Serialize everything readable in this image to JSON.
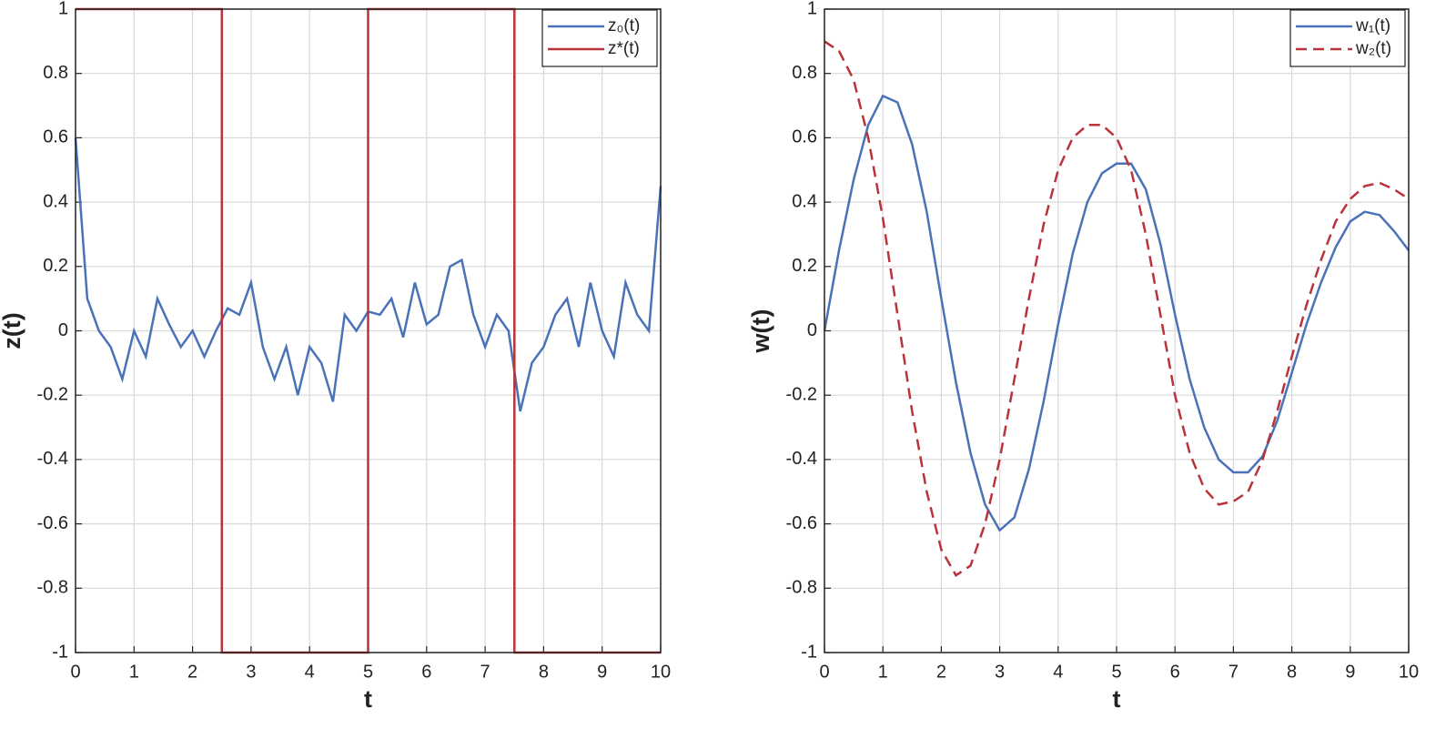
{
  "chart_data": [
    {
      "type": "line",
      "xlabel": "t",
      "ylabel": "z(t)",
      "xlim": [
        0,
        10
      ],
      "ylim": [
        -1,
        1
      ],
      "xticks": [
        0,
        1,
        2,
        3,
        4,
        5,
        6,
        7,
        8,
        9,
        10
      ],
      "yticks": [
        -1,
        -0.8,
        -0.6,
        -0.4,
        -0.2,
        0,
        0.2,
        0.4,
        0.6,
        0.8,
        1
      ],
      "grid": true,
      "legend": "upper right",
      "series": [
        {
          "name": "z₀(t)",
          "color": "#4a72b8",
          "linestyle": "solid",
          "x": [
            0,
            0.2,
            0.4,
            0.6,
            0.8,
            1,
            1.2,
            1.4,
            1.6,
            1.8,
            2,
            2.2,
            2.4,
            2.6,
            2.8,
            3,
            3.2,
            3.4,
            3.6,
            3.8,
            4,
            4.2,
            4.4,
            4.6,
            4.8,
            5,
            5.2,
            5.4,
            5.6,
            5.8,
            6,
            6.2,
            6.4,
            6.6,
            6.8,
            7,
            7.2,
            7.4,
            7.6,
            7.8,
            8,
            8.2,
            8.4,
            8.6,
            8.8,
            9,
            9.2,
            9.4,
            9.6,
            9.8,
            10
          ],
          "values": [
            0.6,
            0.1,
            0,
            -0.05,
            -0.15,
            0,
            -0.08,
            0.1,
            0.02,
            -0.05,
            0,
            -0.08,
            0,
            0.07,
            0.05,
            0.15,
            -0.05,
            -0.15,
            -0.05,
            -0.2,
            -0.05,
            -0.1,
            -0.22,
            0.05,
            0,
            0.06,
            0.05,
            0.1,
            -0.02,
            0.15,
            0.02,
            0.05,
            0.2,
            0.22,
            0.05,
            -0.05,
            0.05,
            0,
            -0.25,
            -0.1,
            -0.05,
            0.05,
            0.1,
            -0.05,
            0.15,
            0,
            -0.08,
            0.15,
            0.05,
            0,
            0.45
          ]
        },
        {
          "name": "z*(t)",
          "color": "#b8333a",
          "linestyle": "solid",
          "x": [
            0,
            2.5,
            2.5,
            5,
            5,
            7.5,
            7.5,
            10
          ],
          "values": [
            1,
            1,
            -1,
            -1,
            1,
            1,
            -1,
            -1
          ]
        }
      ]
    },
    {
      "type": "line",
      "xlabel": "t",
      "ylabel": "w(t)",
      "xlim": [
        0,
        10
      ],
      "ylim": [
        -1,
        1
      ],
      "xticks": [
        0,
        1,
        2,
        3,
        4,
        5,
        6,
        7,
        8,
        9,
        10
      ],
      "yticks": [
        -1,
        -0.8,
        -0.6,
        -0.4,
        -0.2,
        0,
        0.2,
        0.4,
        0.6,
        0.8,
        1
      ],
      "grid": true,
      "legend": "upper right",
      "series": [
        {
          "name": "w₁(t)",
          "color": "#4a72b8",
          "linestyle": "solid",
          "x": [
            0,
            0.25,
            0.5,
            0.75,
            1,
            1.25,
            1.5,
            1.75,
            2,
            2.25,
            2.5,
            2.75,
            3,
            3.25,
            3.5,
            3.75,
            4,
            4.25,
            4.5,
            4.75,
            5,
            5.25,
            5.5,
            5.75,
            6,
            6.25,
            6.5,
            6.75,
            7,
            7.25,
            7.5,
            7.75,
            8,
            8.25,
            8.5,
            8.75,
            9,
            9.25,
            9.5,
            9.75,
            10
          ],
          "values": [
            0,
            0.25,
            0.47,
            0.64,
            0.73,
            0.71,
            0.58,
            0.37,
            0.1,
            -0.16,
            -0.38,
            -0.54,
            -0.62,
            -0.58,
            -0.43,
            -0.22,
            0.02,
            0.24,
            0.4,
            0.49,
            0.52,
            0.52,
            0.44,
            0.27,
            0.05,
            -0.15,
            -0.3,
            -0.4,
            -0.44,
            -0.44,
            -0.39,
            -0.28,
            -0.13,
            0.02,
            0.15,
            0.26,
            0.34,
            0.37,
            0.36,
            0.31,
            0.25
          ]
        },
        {
          "name": "w₂(t)",
          "color": "#b8333a",
          "linestyle": "dashed",
          "x": [
            0,
            0.25,
            0.5,
            0.75,
            1,
            1.25,
            1.5,
            1.75,
            2,
            2.25,
            2.5,
            2.75,
            3,
            3.25,
            3.5,
            3.75,
            4,
            4.25,
            4.5,
            4.75,
            5,
            5.25,
            5.5,
            5.75,
            6,
            6.25,
            6.5,
            6.75,
            7,
            7.25,
            7.5,
            7.75,
            8,
            8.25,
            8.5,
            8.75,
            9,
            9.25,
            9.5,
            9.75,
            10
          ],
          "values": [
            0.9,
            0.87,
            0.78,
            0.6,
            0.35,
            0.05,
            -0.25,
            -0.5,
            -0.68,
            -0.76,
            -0.73,
            -0.6,
            -0.4,
            -0.15,
            0.1,
            0.33,
            0.5,
            0.6,
            0.64,
            0.64,
            0.6,
            0.5,
            0.3,
            0.05,
            -0.2,
            -0.38,
            -0.49,
            -0.54,
            -0.53,
            -0.5,
            -0.4,
            -0.25,
            -0.08,
            0.08,
            0.22,
            0.34,
            0.41,
            0.45,
            0.46,
            0.44,
            0.41
          ]
        }
      ]
    }
  ]
}
